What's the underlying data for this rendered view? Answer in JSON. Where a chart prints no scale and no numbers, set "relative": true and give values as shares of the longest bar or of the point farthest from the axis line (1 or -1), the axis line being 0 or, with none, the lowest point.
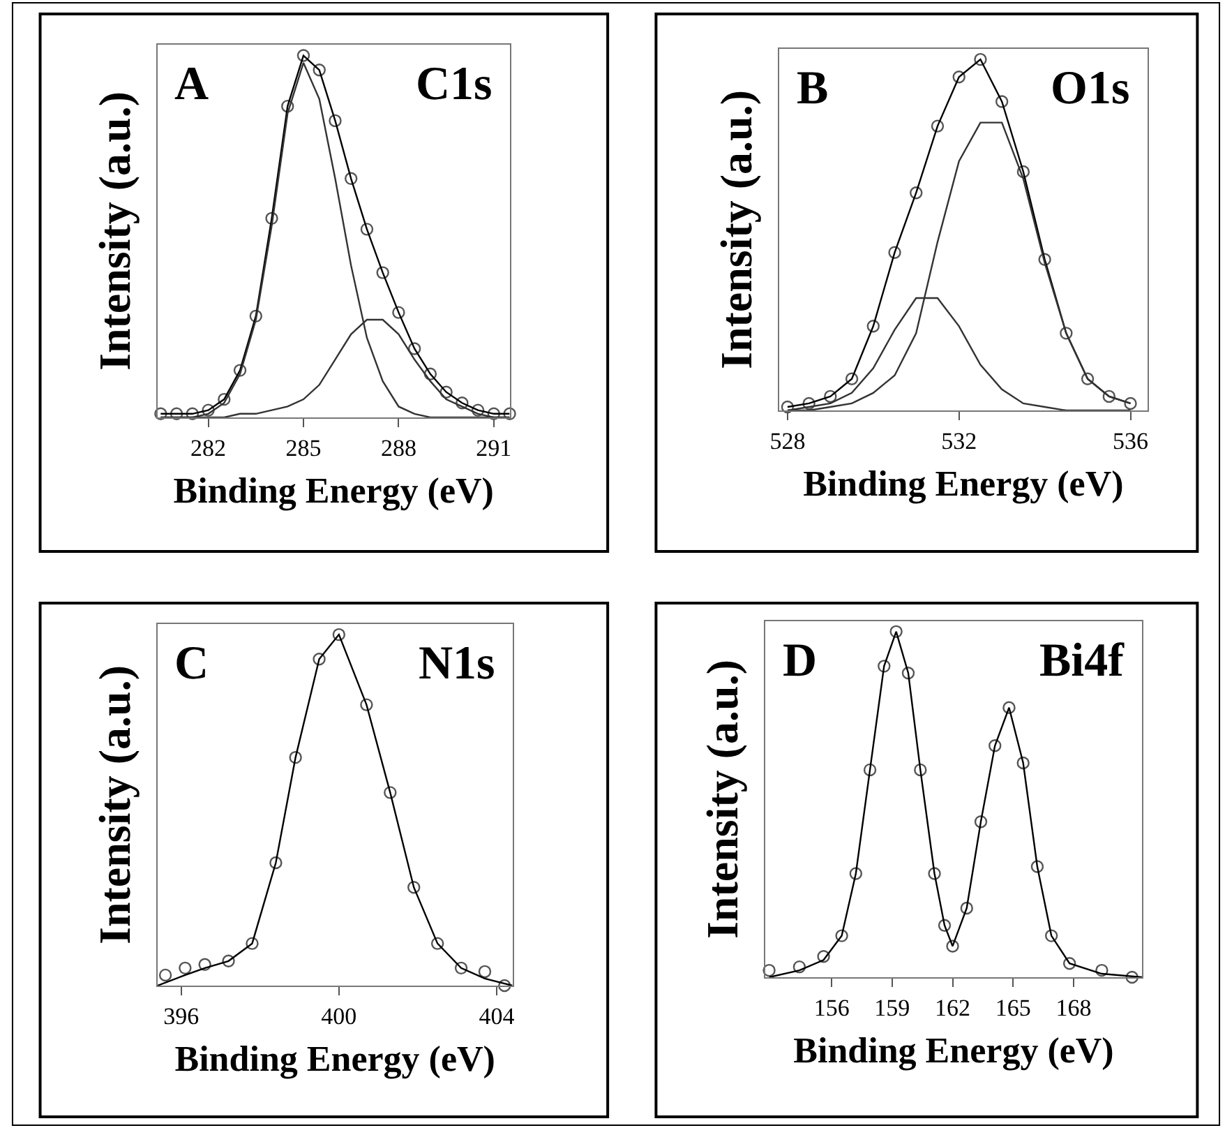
{
  "chart_data": [
    {
      "type": "line",
      "relative": true,
      "xlabel": "Binding Energy (eV)",
      "ylabel": "Intensity (a.u.)",
      "annotations": [
        "A",
        "C1s"
      ],
      "xlim": [
        280.4,
        291.5
      ],
      "xticks": [
        282,
        285,
        288,
        291
      ],
      "tick_labels": "x",
      "line_style": "solid",
      "series": [
        {
          "type": "scatter",
          "marker": "circle",
          "color": "#555555",
          "x": [
            280.5,
            281,
            281.5,
            282,
            282.5,
            283,
            283.5,
            284,
            284.5,
            285,
            285.5,
            286,
            286.5,
            287,
            287.5,
            288,
            288.5,
            289,
            289.5,
            290,
            290.5,
            291,
            291.5
          ],
          "values": [
            0.01,
            0.01,
            0.01,
            0.02,
            0.05,
            0.13,
            0.28,
            0.55,
            0.86,
            1.0,
            0.96,
            0.82,
            0.66,
            0.52,
            0.4,
            0.29,
            0.19,
            0.12,
            0.07,
            0.04,
            0.02,
            0.01,
            0.01
          ]
        },
        {
          "color": "#000000",
          "x": [
            280.5,
            281,
            281.5,
            282,
            282.5,
            283,
            283.5,
            284,
            284.5,
            285,
            285.5,
            286,
            286.5,
            287,
            287.5,
            288,
            288.5,
            289,
            289.5,
            290,
            290.5,
            291,
            291.5
          ],
          "values": [
            0.01,
            0.01,
            0.01,
            0.02,
            0.05,
            0.13,
            0.28,
            0.55,
            0.86,
            1.0,
            0.96,
            0.82,
            0.66,
            0.52,
            0.4,
            0.29,
            0.19,
            0.12,
            0.07,
            0.04,
            0.02,
            0.01,
            0.01
          ]
        },
        {
          "color": "#333333",
          "x": [
            280.5,
            281,
            281.5,
            282,
            282.5,
            283,
            283.5,
            284,
            284.5,
            285,
            285.5,
            286,
            286.5,
            287,
            287.5,
            288,
            288.5,
            289,
            289.5,
            290,
            290.5,
            291,
            291.5
          ],
          "values": [
            0,
            0,
            0,
            0.01,
            0.04,
            0.12,
            0.27,
            0.53,
            0.84,
            0.98,
            0.88,
            0.66,
            0.42,
            0.22,
            0.1,
            0.03,
            0.01,
            0,
            0,
            0,
            0,
            0,
            0
          ]
        },
        {
          "color": "#333333",
          "x": [
            280.5,
            281,
            281.5,
            282,
            282.5,
            283,
            283.5,
            284,
            284.5,
            285,
            285.5,
            286,
            286.5,
            287,
            287.5,
            288,
            288.5,
            289,
            289.5,
            290,
            290.5,
            291,
            291.5
          ],
          "values": [
            0,
            0,
            0,
            0,
            0,
            0.01,
            0.01,
            0.02,
            0.03,
            0.05,
            0.09,
            0.16,
            0.23,
            0.27,
            0.27,
            0.23,
            0.16,
            0.1,
            0.05,
            0.03,
            0.01,
            0,
            0
          ]
        }
      ]
    },
    {
      "type": "line",
      "relative": true,
      "xlabel": "Binding Energy (eV)",
      "ylabel": "Intensity (a.u.)",
      "annotations": [
        "B",
        "O1s"
      ],
      "xlim": [
        527.8,
        536.4
      ],
      "xticks": [
        528,
        532,
        536
      ],
      "tick_labels": "x",
      "line_style": "solid",
      "series": [
        {
          "type": "scatter",
          "marker": "circle",
          "color": "#555555",
          "x": [
            528,
            528.5,
            529,
            529.5,
            530,
            530.5,
            531,
            531.5,
            532,
            532.5,
            533,
            533.5,
            534,
            534.5,
            535,
            535.5,
            536
          ],
          "values": [
            0.01,
            0.02,
            0.04,
            0.09,
            0.24,
            0.45,
            0.62,
            0.81,
            0.95,
            1.0,
            0.88,
            0.68,
            0.43,
            0.22,
            0.09,
            0.04,
            0.02
          ]
        },
        {
          "color": "#000000",
          "x": [
            528,
            528.5,
            529,
            529.5,
            530,
            530.5,
            531,
            531.5,
            532,
            532.5,
            533,
            533.5,
            534,
            534.5,
            535,
            535.5,
            536
          ],
          "values": [
            0.01,
            0.02,
            0.04,
            0.09,
            0.24,
            0.45,
            0.62,
            0.81,
            0.95,
            1.0,
            0.88,
            0.68,
            0.43,
            0.22,
            0.09,
            0.04,
            0.02
          ]
        },
        {
          "color": "#333333",
          "x": [
            528,
            528.5,
            529,
            529.5,
            530,
            530.5,
            531,
            531.5,
            532,
            532.5,
            533,
            533.5,
            534,
            534.5,
            535,
            535.5,
            536
          ],
          "values": [
            0,
            0.01,
            0.02,
            0.05,
            0.12,
            0.23,
            0.32,
            0.32,
            0.24,
            0.13,
            0.06,
            0.02,
            0.01,
            0,
            0,
            0,
            0
          ]
        },
        {
          "color": "#333333",
          "x": [
            528,
            528.5,
            529,
            529.5,
            530,
            530.5,
            531,
            531.5,
            532,
            532.5,
            533,
            533.5,
            534,
            534.5,
            535,
            535.5,
            536
          ],
          "values": [
            0,
            0,
            0.01,
            0.02,
            0.05,
            0.1,
            0.22,
            0.48,
            0.71,
            0.82,
            0.82,
            0.66,
            0.42,
            0.22,
            0.09,
            0.04,
            0.02
          ]
        }
      ]
    },
    {
      "type": "line",
      "relative": true,
      "xlabel": "Binding Energy (eV)",
      "ylabel": "Intensity (a.u.)",
      "annotations": [
        "C",
        "N1s"
      ],
      "xlim": [
        395.4,
        404.4
      ],
      "xticks": [
        396,
        400,
        404
      ],
      "tick_labels": "x",
      "line_style": "solid",
      "series": [
        {
          "type": "scatter",
          "marker": "circle",
          "color": "#555555",
          "x": [
            395.6,
            396.1,
            396.6,
            397.2,
            397.8,
            398.4,
            398.9,
            399.5,
            400.0,
            400.7,
            401.3,
            401.9,
            402.5,
            403.1,
            403.7,
            404.2
          ],
          "values": [
            0.03,
            0.05,
            0.06,
            0.07,
            0.12,
            0.35,
            0.65,
            0.93,
            1.0,
            0.8,
            0.55,
            0.28,
            0.12,
            0.05,
            0.04,
            0.0
          ]
        },
        {
          "color": "#000000",
          "x": [
            395.4,
            396.1,
            396.6,
            397.2,
            397.8,
            398.4,
            398.9,
            399.5,
            400.0,
            400.7,
            401.3,
            401.9,
            402.5,
            403.1,
            403.7,
            404.4
          ],
          "values": [
            0.0,
            0.03,
            0.05,
            0.07,
            0.12,
            0.35,
            0.65,
            0.93,
            1.0,
            0.8,
            0.55,
            0.28,
            0.12,
            0.05,
            0.02,
            0.0
          ]
        }
      ]
    },
    {
      "type": "line",
      "relative": true,
      "xlabel": "Binding Energy (eV)",
      "ylabel": "Intensity (a.u.)",
      "annotations": [
        "D",
        "Bi4f"
      ],
      "xlim": [
        152.7,
        171.4
      ],
      "xticks": [
        156,
        159,
        162,
        165,
        168
      ],
      "tick_labels": "x",
      "line_style": "solid",
      "series": [
        {
          "type": "scatter",
          "marker": "circle",
          "color": "#555555",
          "x": [
            152.9,
            154.4,
            155.6,
            156.5,
            157.2,
            157.9,
            158.6,
            159.2,
            159.8,
            160.4,
            161.1,
            161.6,
            162.0,
            162.7,
            163.4,
            164.1,
            164.8,
            165.5,
            166.2,
            166.9,
            167.8,
            169.4,
            170.9
          ],
          "values": [
            0.02,
            0.03,
            0.06,
            0.12,
            0.3,
            0.6,
            0.9,
            1.0,
            0.88,
            0.6,
            0.3,
            0.15,
            0.09,
            0.2,
            0.45,
            0.67,
            0.78,
            0.62,
            0.32,
            0.12,
            0.04,
            0.02,
            0.0
          ]
        },
        {
          "color": "#000000",
          "x": [
            152.9,
            154.4,
            155.6,
            156.5,
            157.2,
            157.9,
            158.6,
            159.2,
            159.8,
            160.4,
            161.1,
            161.6,
            162.0,
            162.7,
            163.4,
            164.1,
            164.8,
            165.5,
            166.2,
            166.9,
            167.8,
            169.4,
            171.4
          ],
          "values": [
            0.0,
            0.02,
            0.05,
            0.12,
            0.3,
            0.6,
            0.9,
            1.0,
            0.88,
            0.6,
            0.3,
            0.15,
            0.09,
            0.2,
            0.45,
            0.67,
            0.78,
            0.62,
            0.32,
            0.12,
            0.04,
            0.01,
            0.0
          ]
        }
      ]
    }
  ]
}
